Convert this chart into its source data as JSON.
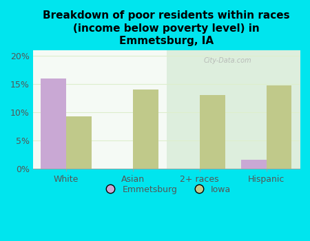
{
  "title": "Breakdown of poor residents within races\n(income below poverty level) in\nEmmetsburg, IA",
  "categories": [
    "White",
    "Asian",
    "2+ races",
    "Hispanic"
  ],
  "emmetsburg_values": [
    16.0,
    0,
    0,
    1.5
  ],
  "iowa_values": [
    9.3,
    14.0,
    13.0,
    14.7
  ],
  "emmetsburg_color": "#c9a8d4",
  "iowa_color": "#c0c98a",
  "background_outer": "#00e5ee",
  "background_inner_top": "#f5faf5",
  "background_inner_bottom": "#ddeedd",
  "yticks": [
    0,
    5,
    10,
    15,
    20
  ],
  "ylim": [
    0,
    21
  ],
  "bar_width": 0.38,
  "legend_labels": [
    "Emmetsburg",
    "Iowa"
  ],
  "watermark": "City-Data.com",
  "title_fontsize": 11,
  "tick_label_color": "#555555",
  "grid_color": "#ddeecc"
}
